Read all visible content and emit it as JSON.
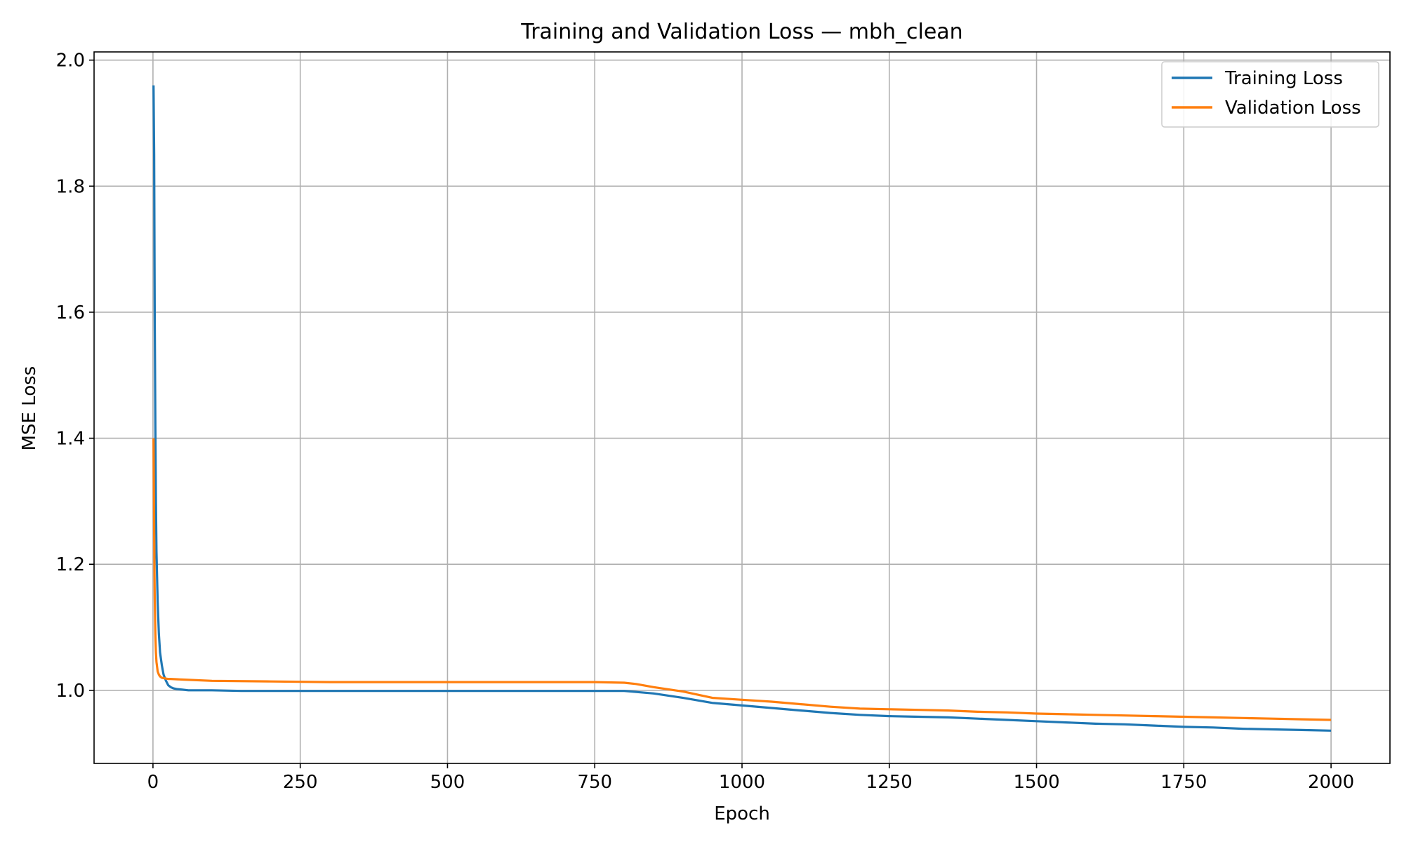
{
  "chart_data": {
    "type": "line",
    "title": "Training and Validation Loss — mbh_clean",
    "xlabel": "Epoch",
    "ylabel": "MSE Loss",
    "xlim": [
      -100,
      2100
    ],
    "ylim": [
      0.884,
      2.013
    ],
    "xticks": [
      0,
      250,
      500,
      750,
      1000,
      1250,
      1500,
      1750,
      2000
    ],
    "yticks": [
      1.0,
      1.2,
      1.4,
      1.6,
      1.8,
      2.0
    ],
    "xtick_labels": [
      "0",
      "250",
      "500",
      "750",
      "1000",
      "1250",
      "1500",
      "1750",
      "2000"
    ],
    "ytick_labels": [
      "1.0",
      "1.2",
      "1.4",
      "1.6",
      "1.8",
      "2.0"
    ],
    "grid": true,
    "legend_position": "top-right",
    "series": [
      {
        "name": "Training Loss",
        "color": "#1f77b4",
        "x": [
          1,
          2,
          3,
          4,
          5,
          6,
          8,
          10,
          12,
          15,
          18,
          22,
          26,
          30,
          35,
          40,
          50,
          60,
          80,
          100,
          150,
          200,
          250,
          300,
          400,
          500,
          600,
          700,
          750,
          800,
          850,
          900,
          950,
          1000,
          1050,
          1100,
          1150,
          1200,
          1250,
          1300,
          1350,
          1400,
          1450,
          1500,
          1550,
          1600,
          1650,
          1700,
          1750,
          1800,
          1850,
          1900,
          1950,
          2000
        ],
        "y": [
          1.96,
          1.85,
          1.6,
          1.42,
          1.3,
          1.22,
          1.14,
          1.09,
          1.06,
          1.04,
          1.025,
          1.015,
          1.008,
          1.005,
          1.003,
          1.002,
          1.001,
          1.0,
          1.0,
          1.0,
          0.999,
          0.999,
          0.999,
          0.999,
          0.999,
          0.999,
          0.999,
          0.999,
          0.999,
          0.999,
          0.995,
          0.988,
          0.98,
          0.976,
          0.972,
          0.968,
          0.964,
          0.961,
          0.959,
          0.958,
          0.957,
          0.955,
          0.953,
          0.951,
          0.949,
          0.947,
          0.946,
          0.944,
          0.942,
          0.941,
          0.939,
          0.938,
          0.937,
          0.936
        ]
      },
      {
        "name": "Validation Loss",
        "color": "#ff7f0e",
        "x": [
          1,
          2,
          3,
          4,
          5,
          6,
          8,
          10,
          12,
          15,
          20,
          25,
          30,
          50,
          100,
          200,
          300,
          400,
          500,
          600,
          700,
          750,
          800,
          820,
          850,
          900,
          950,
          1000,
          1050,
          1100,
          1150,
          1200,
          1250,
          1300,
          1350,
          1400,
          1450,
          1500,
          1550,
          1600,
          1650,
          1700,
          1750,
          1800,
          1850,
          1900,
          1950,
          2000
        ],
        "y": [
          1.4,
          1.25,
          1.15,
          1.09,
          1.06,
          1.045,
          1.03,
          1.025,
          1.022,
          1.02,
          1.019,
          1.018,
          1.018,
          1.017,
          1.015,
          1.014,
          1.013,
          1.013,
          1.013,
          1.013,
          1.013,
          1.013,
          1.012,
          1.01,
          1.005,
          0.998,
          0.988,
          0.985,
          0.982,
          0.978,
          0.974,
          0.971,
          0.97,
          0.969,
          0.968,
          0.966,
          0.965,
          0.963,
          0.962,
          0.961,
          0.96,
          0.959,
          0.958,
          0.957,
          0.956,
          0.955,
          0.954,
          0.953
        ]
      }
    ]
  }
}
